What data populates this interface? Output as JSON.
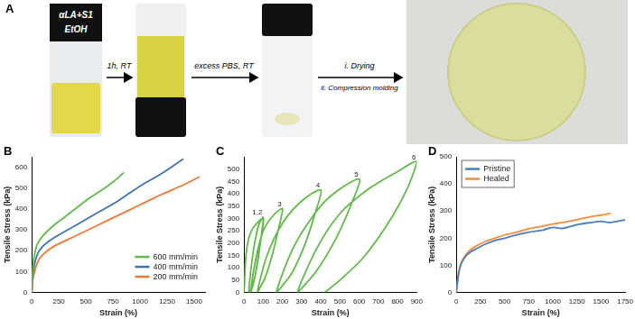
{
  "figure": {
    "panel_a": {
      "title": "A",
      "vial_label": [
        "αLA+S1",
        "EtOH"
      ],
      "steps": [
        [
          "1h, RT"
        ],
        [
          "excess PBS, RT"
        ],
        [
          "i. Drying",
          "ii. Compression molding"
        ]
      ]
    }
  },
  "chart_data": [
    {
      "type": "line",
      "title": "B",
      "x_label": "Strain (%)",
      "y_label": "Tensile Stress (kPa)",
      "xlim": [
        0,
        1600
      ],
      "xticks": [
        0,
        250,
        500,
        750,
        1000,
        1250,
        1500
      ],
      "ylim": [
        0,
        650
      ],
      "yticks": [
        0,
        100,
        200,
        300,
        400,
        500,
        600
      ],
      "grid": false,
      "legend": "lower right",
      "series": [
        {
          "name": "600 mm/min",
          "color": "#62b84a",
          "x": [
            0,
            10,
            25,
            50,
            100,
            200,
            300,
            400,
            500,
            600,
            700,
            800,
            850
          ],
          "values": [
            0,
            120,
            180,
            230,
            270,
            320,
            360,
            400,
            440,
            475,
            510,
            550,
            575
          ]
        },
        {
          "name": "400 mm/min",
          "color": "#3f73ad",
          "x": [
            0,
            10,
            50,
            100,
            200,
            400,
            600,
            800,
            1000,
            1200,
            1400
          ],
          "values": [
            0,
            90,
            180,
            220,
            260,
            320,
            380,
            440,
            510,
            570,
            640
          ]
        },
        {
          "name": "200 mm/min",
          "color": "#ea7a35",
          "x": [
            0,
            10,
            50,
            100,
            200,
            400,
            600,
            800,
            1000,
            1200,
            1400,
            1550
          ],
          "values": [
            0,
            60,
            140,
            180,
            220,
            270,
            320,
            370,
            420,
            470,
            515,
            555
          ]
        }
      ]
    },
    {
      "type": "line",
      "title": "C",
      "x_label": "Strain (%)",
      "y_label": "Tensile Stress (kPa)",
      "xlim": [
        0,
        900
      ],
      "xticks": [
        0,
        100,
        200,
        300,
        400,
        500,
        600,
        700,
        800,
        900
      ],
      "ylim": [
        0,
        550
      ],
      "yticks": [
        0,
        50,
        100,
        150,
        200,
        250,
        300,
        350,
        400,
        450,
        500
      ],
      "grid": false,
      "series": [
        {
          "color": "#62b84a",
          "x": [
            0,
            10,
            25,
            50,
            100,
            90,
            75,
            55,
            35,
            25,
            40,
            60,
            80,
            100,
            90,
            70,
            50,
            35,
            60,
            100,
            150,
            200,
            180,
            150,
            110,
            70,
            120,
            200,
            300,
            400,
            370,
            320,
            250,
            170,
            250,
            350,
            450,
            600,
            560,
            480,
            380,
            280,
            380,
            500,
            650,
            800,
            900,
            850,
            750,
            620,
            500,
            420
          ],
          "values": [
            0,
            150,
            220,
            265,
            300,
            230,
            150,
            60,
            10,
            0,
            120,
            220,
            280,
            305,
            230,
            120,
            40,
            0,
            130,
            250,
            310,
            340,
            260,
            160,
            60,
            0,
            150,
            280,
            370,
            415,
            320,
            200,
            80,
            0,
            170,
            300,
            390,
            460,
            360,
            220,
            90,
            0,
            180,
            320,
            420,
            490,
            530,
            420,
            280,
            140,
            50,
            0
          ]
        }
      ],
      "annotations": [
        {
          "text": "1,2",
          "x": 100,
          "y": 305
        },
        {
          "text": "3",
          "x": 200,
          "y": 340
        },
        {
          "text": "4",
          "x": 400,
          "y": 415
        },
        {
          "text": "5",
          "x": 600,
          "y": 460
        },
        {
          "text": "6",
          "x": 900,
          "y": 530
        }
      ]
    },
    {
      "type": "line",
      "title": "D",
      "x_label": "Strain (%)",
      "y_label": "Tensile Stress (kPa)",
      "xlim": [
        0,
        1750
      ],
      "xticks": [
        0,
        250,
        500,
        750,
        1000,
        1250,
        1500,
        1750
      ],
      "ylim": [
        0,
        500
      ],
      "yticks": [
        0,
        100,
        200,
        300,
        400,
        500
      ],
      "grid": false,
      "legend": "upper left",
      "series": [
        {
          "name": "Pristine",
          "color": "#4a7ebb",
          "x": [
            0,
            25,
            50,
            100,
            150,
            200,
            300,
            400,
            500,
            600,
            750,
            900,
            1000,
            1100,
            1250,
            1400,
            1500,
            1600,
            1750
          ],
          "values": [
            0,
            70,
            105,
            135,
            150,
            160,
            178,
            192,
            200,
            210,
            222,
            230,
            240,
            236,
            250,
            258,
            262,
            258,
            268
          ]
        },
        {
          "name": "Healed",
          "color": "#f28e3c",
          "x": [
            0,
            25,
            50,
            100,
            150,
            200,
            300,
            400,
            500,
            600,
            750,
            900,
            1000,
            1100,
            1250,
            1400,
            1500,
            1600
          ],
          "values": [
            0,
            75,
            110,
            140,
            158,
            170,
            188,
            200,
            212,
            220,
            235,
            245,
            252,
            258,
            268,
            280,
            285,
            292
          ]
        }
      ]
    }
  ]
}
